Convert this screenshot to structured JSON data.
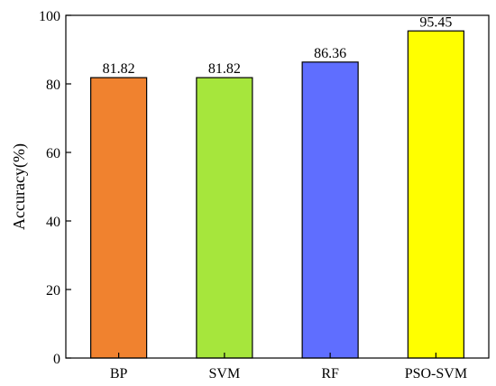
{
  "chart_data": {
    "type": "bar",
    "categories": [
      "BP",
      "SVM",
      "RF",
      "PSO-SVM"
    ],
    "values": [
      81.82,
      81.82,
      86.36,
      95.45
    ],
    "value_labels": [
      "81.82",
      "81.82",
      "86.36",
      "95.45"
    ],
    "bar_colors": [
      "#F0822F",
      "#A6E63C",
      "#5F6EFF",
      "#FFFF00"
    ],
    "title": "",
    "xlabel": "",
    "ylabel": "Accuracy(%)",
    "ylim": [
      0,
      100
    ],
    "yticks": [
      0,
      20,
      40,
      60,
      80,
      100
    ],
    "ytick_labels": [
      "0",
      "20",
      "40",
      "60",
      "80",
      "100"
    ],
    "grid": false,
    "legend": "none"
  }
}
